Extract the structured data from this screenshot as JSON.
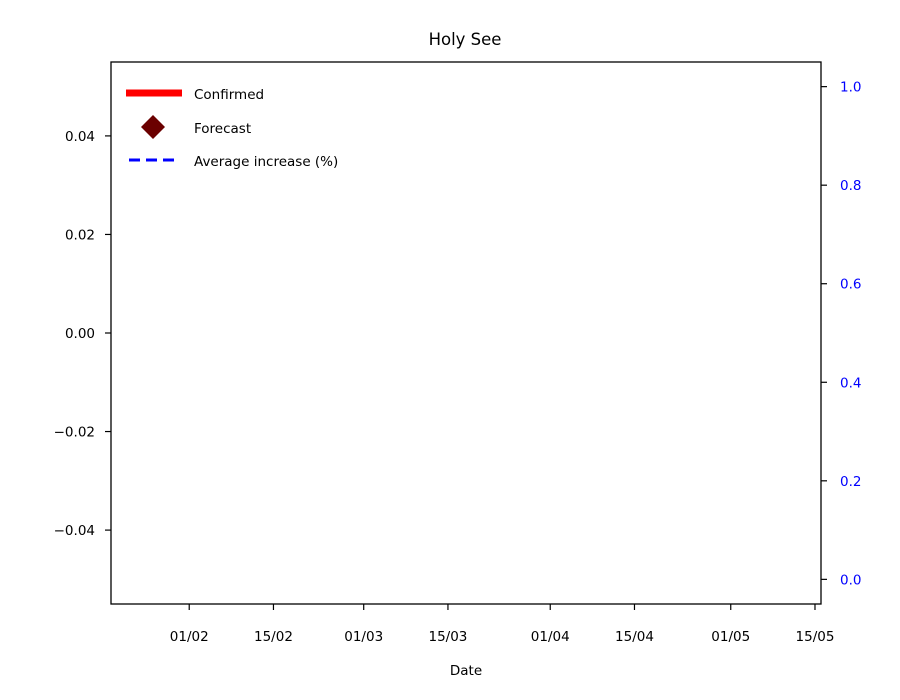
{
  "chart_data": {
    "type": "line",
    "title": "Holy See",
    "xlabel": "Date",
    "ylabel": "",
    "ylabel_right": "",
    "x_ticks": [
      "01/02",
      "15/02",
      "01/03",
      "15/03",
      "01/04",
      "15/04",
      "01/05",
      "15/05"
    ],
    "x_tick_dates": [
      "2020-02-01",
      "2020-02-15",
      "2020-03-01",
      "2020-03-15",
      "2020-04-01",
      "2020-04-15",
      "2020-05-01",
      "2020-05-15"
    ],
    "xlim": [
      "2020-01-19",
      "2020-05-16"
    ],
    "ylim": [
      -0.055,
      0.055
    ],
    "y_ticks": [
      -0.04,
      -0.02,
      0.0,
      0.02,
      0.04
    ],
    "y_tick_labels": [
      "−0.04",
      "−0.02",
      "0.00",
      "0.02",
      "0.04"
    ],
    "ylim_right": [
      -0.05,
      1.05
    ],
    "y_ticks_right": [
      0.0,
      0.2,
      0.4,
      0.6,
      0.8,
      1.0
    ],
    "y_tick_labels_right": [
      "0.0",
      "0.2",
      "0.4",
      "0.6",
      "0.8",
      "1.0"
    ],
    "right_axis_color": "#0000ff",
    "grid": false,
    "legend_position": "top-left",
    "series": [
      {
        "name": "Confirmed",
        "color": "#ff0000",
        "style": "solid-thick",
        "x": [],
        "values": []
      },
      {
        "name": "Forecast",
        "color": "#6b0000",
        "style": "diamond-marker",
        "x": [],
        "values": []
      },
      {
        "name": "Average increase (%)",
        "color": "#0000ff",
        "style": "dashed",
        "axis": "right",
        "x": [],
        "values": []
      }
    ]
  }
}
